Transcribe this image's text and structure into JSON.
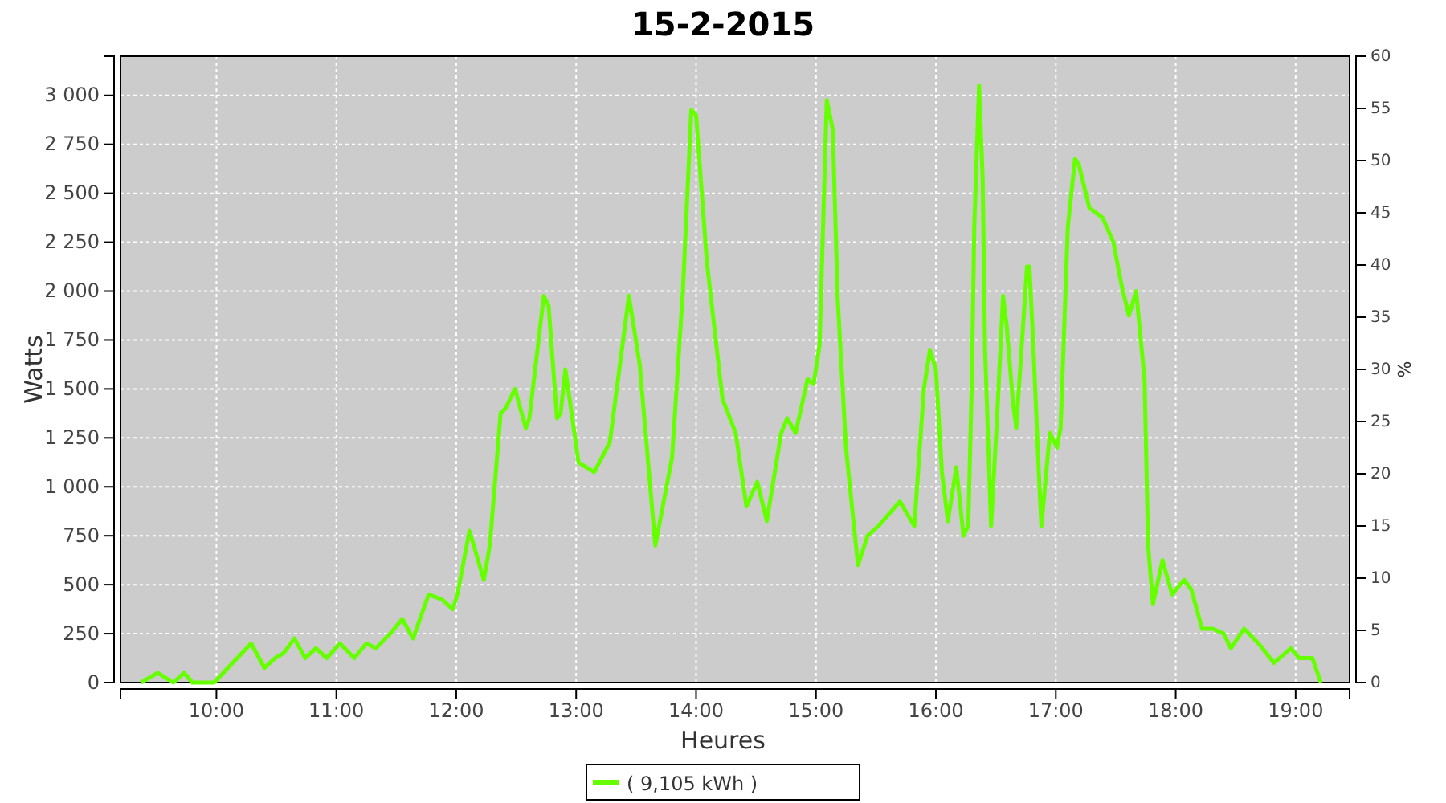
{
  "chart_data": {
    "type": "line",
    "title": "15-2-2015",
    "xlabel": "Heures",
    "ylabel": "Watts",
    "y2label": "%",
    "xlim": [
      9.2,
      19.45
    ],
    "ylim": [
      0,
      3200
    ],
    "y2lim": [
      0,
      60
    ],
    "xticks": [
      {
        "value": 10,
        "label": "10:00"
      },
      {
        "value": 11,
        "label": "11:00"
      },
      {
        "value": 12,
        "label": "12:00"
      },
      {
        "value": 13,
        "label": "13:00"
      },
      {
        "value": 14,
        "label": "14:00"
      },
      {
        "value": 15,
        "label": "15:00"
      },
      {
        "value": 16,
        "label": "16:00"
      },
      {
        "value": 17,
        "label": "17:00"
      },
      {
        "value": 18,
        "label": "18:00"
      },
      {
        "value": 19,
        "label": "19:00"
      }
    ],
    "yticks": [
      0,
      250,
      500,
      750,
      {
        "value": 1000,
        "label": "1 000"
      },
      {
        "value": 1250,
        "label": "1 250"
      },
      {
        "value": 1500,
        "label": "1 500"
      },
      {
        "value": 1750,
        "label": "1 750"
      },
      {
        "value": 2000,
        "label": "2 000"
      },
      {
        "value": 2250,
        "label": "2 250"
      },
      {
        "value": 2500,
        "label": "2 500"
      },
      {
        "value": 2750,
        "label": "2 750"
      },
      {
        "value": 3000,
        "label": "3 000"
      }
    ],
    "y2ticks": [
      0,
      5,
      10,
      15,
      20,
      25,
      30,
      35,
      40,
      45,
      50,
      55,
      60
    ],
    "grid": true,
    "legend": "bottom",
    "marker": "none",
    "line_style": "solid",
    "series": [
      {
        "name": "( 9,105 kWh )",
        "color": "#66ff00",
        "x": [
          9.37,
          9.51,
          9.64,
          9.73,
          9.8,
          9.98,
          10.29,
          10.4,
          10.49,
          10.56,
          10.65,
          10.74,
          10.83,
          10.92,
          11.03,
          11.15,
          11.25,
          11.33,
          11.45,
          11.55,
          11.64,
          11.77,
          11.88,
          11.97,
          12.01,
          12.11,
          12.23,
          12.28,
          12.37,
          12.41,
          12.49,
          12.58,
          12.61,
          12.73,
          12.77,
          12.84,
          12.87,
          12.91,
          13.02,
          13.15,
          13.28,
          13.44,
          13.53,
          13.66,
          13.8,
          13.89,
          13.96,
          14,
          14.09,
          14.22,
          14.33,
          14.42,
          14.51,
          14.59,
          14.71,
          14.76,
          14.83,
          14.93,
          14.98,
          15.03,
          15.09,
          15.14,
          15.18,
          15.25,
          15.35,
          15.43,
          15.52,
          15.7,
          15.82,
          15.9,
          15.95,
          16,
          16.05,
          16.1,
          16.17,
          16.23,
          16.27,
          16.3,
          16.32,
          16.36,
          16.39,
          16.41,
          16.46,
          16.51,
          16.56,
          16.59,
          16.64,
          16.67,
          16.76,
          16.78,
          16.81,
          16.86,
          16.88,
          16.95,
          17.01,
          17.04,
          17.1,
          17.16,
          17.19,
          17.28,
          17.39,
          17.48,
          17.55,
          17.61,
          17.67,
          17.74,
          17.77,
          17.81,
          17.89,
          17.97,
          18.07,
          18.13,
          18.22,
          18.31,
          18.4,
          18.46,
          18.57,
          18.69,
          18.82,
          18.96,
          19.03,
          19.14,
          19.21
        ],
        "values": [
          0,
          50,
          0,
          50,
          0,
          0,
          200,
          75,
          125,
          150,
          225,
          125,
          175,
          125,
          200,
          125,
          200,
          175,
          250,
          325,
          225,
          450,
          425,
          375,
          450,
          775,
          525,
          700,
          1375,
          1400,
          1500,
          1300,
          1350,
          1975,
          1925,
          1350,
          1375,
          1600,
          1125,
          1075,
          1225,
          1975,
          1625,
          700,
          1150,
          2000,
          2925,
          2900,
          2150,
          1450,
          1275,
          900,
          1025,
          825,
          1275,
          1350,
          1275,
          1550,
          1525,
          1725,
          2975,
          2825,
          1975,
          1200,
          600,
          750,
          800,
          925,
          800,
          1500,
          1700,
          1600,
          1075,
          825,
          1100,
          750,
          800,
          1550,
          2325,
          3050,
          2575,
          1700,
          800,
          1350,
          1975,
          1825,
          1450,
          1300,
          2125,
          2125,
          1750,
          1050,
          800,
          1275,
          1200,
          1300,
          2325,
          2675,
          2650,
          2425,
          2375,
          2250,
          2025,
          1875,
          2000,
          1550,
          700,
          400,
          625,
          450,
          525,
          475,
          275,
          275,
          250,
          175,
          275,
          200,
          100,
          175,
          125,
          125,
          0
        ]
      }
    ]
  }
}
